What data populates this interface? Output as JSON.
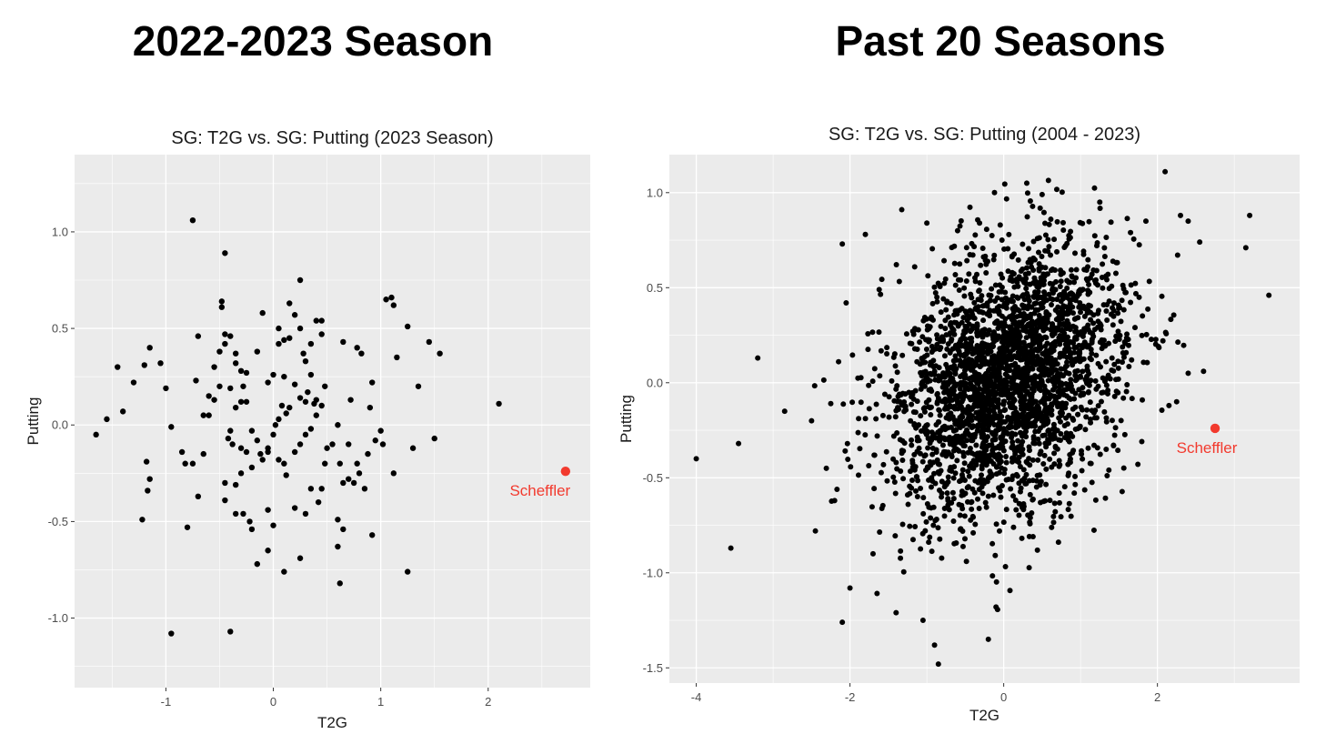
{
  "headings": {
    "left": "2022-2023 Season",
    "right": "Past 20 Seasons"
  },
  "colors": {
    "panel_bg": "#ebebeb",
    "grid_major": "#ffffff",
    "point": "#000000",
    "highlight": "#f23a2e"
  },
  "chart_data": [
    {
      "type": "scatter",
      "title": "SG: T2G vs. SG: Putting (2023 Season)",
      "xlabel": "T2G",
      "ylabel": "Putting",
      "xlim": [
        -1.85,
        2.95
      ],
      "ylim": [
        -1.36,
        1.4
      ],
      "xticks": [
        -1,
        0,
        1,
        2
      ],
      "xtick_labels": [
        "-1",
        "0",
        "1",
        "2"
      ],
      "yticks": [
        -1.0,
        -0.5,
        0.0,
        0.5,
        1.0
      ],
      "ytick_labels": [
        "-1.0",
        "-0.5",
        "0.0",
        "0.5",
        "1.0"
      ],
      "grid": true,
      "points": [
        [
          -1.65,
          -0.05
        ],
        [
          -1.55,
          0.03
        ],
        [
          -1.45,
          0.3
        ],
        [
          -1.4,
          0.07
        ],
        [
          -1.3,
          0.22
        ],
        [
          -1.2,
          0.31
        ],
        [
          -1.15,
          0.4
        ],
        [
          -1.05,
          0.32
        ],
        [
          -1.0,
          0.19
        ],
        [
          -0.95,
          -0.01
        ],
        [
          -1.18,
          -0.19
        ],
        [
          -1.15,
          -0.28
        ],
        [
          -1.17,
          -0.34
        ],
        [
          -1.22,
          -0.49
        ],
        [
          -0.85,
          -0.14
        ],
        [
          -0.82,
          -0.2
        ],
        [
          -0.75,
          -0.2
        ],
        [
          -0.8,
          -0.53
        ],
        [
          -0.7,
          -0.37
        ],
        [
          -0.65,
          -0.15
        ],
        [
          -0.72,
          0.23
        ],
        [
          -0.7,
          0.46
        ],
        [
          -0.65,
          0.05
        ],
        [
          -0.6,
          0.15
        ],
        [
          -0.55,
          0.13
        ],
        [
          -0.5,
          0.38
        ],
        [
          -0.48,
          0.61
        ],
        [
          -0.48,
          0.64
        ],
        [
          -0.45,
          0.47
        ],
        [
          -0.4,
          0.46
        ],
        [
          -0.45,
          0.42
        ],
        [
          -0.35,
          0.37
        ],
        [
          -0.35,
          0.32
        ],
        [
          -0.3,
          0.28
        ],
        [
          -0.25,
          0.27
        ],
        [
          -0.28,
          0.2
        ],
        [
          -0.3,
          0.12
        ],
        [
          -0.25,
          0.12
        ],
        [
          -0.35,
          0.09
        ],
        [
          -0.4,
          -0.03
        ],
        [
          -0.42,
          -0.07
        ],
        [
          -0.38,
          -0.1
        ],
        [
          -0.3,
          -0.12
        ],
        [
          -0.25,
          -0.14
        ],
        [
          -0.2,
          -0.03
        ],
        [
          -0.15,
          -0.08
        ],
        [
          -0.12,
          -0.15
        ],
        [
          -0.2,
          -0.22
        ],
        [
          -0.3,
          -0.25
        ],
        [
          -0.35,
          -0.31
        ],
        [
          -0.45,
          -0.3
        ],
        [
          -0.45,
          -0.39
        ],
        [
          -0.35,
          -0.46
        ],
        [
          -0.28,
          -0.46
        ],
        [
          -0.22,
          -0.5
        ],
        [
          -0.2,
          -0.54
        ],
        [
          -0.15,
          -0.72
        ],
        [
          -0.05,
          -0.65
        ],
        [
          -0.05,
          -0.44
        ],
        [
          0.0,
          -0.52
        ],
        [
          -0.5,
          0.2
        ],
        [
          -0.55,
          0.3
        ],
        [
          -0.4,
          0.19
        ],
        [
          -0.15,
          0.38
        ],
        [
          -0.1,
          0.58
        ],
        [
          -0.05,
          0.22
        ],
        [
          0.0,
          0.26
        ],
        [
          0.05,
          0.5
        ],
        [
          0.05,
          0.42
        ],
        [
          0.1,
          0.44
        ],
        [
          0.15,
          0.45
        ],
        [
          0.15,
          0.63
        ],
        [
          0.2,
          0.57
        ],
        [
          0.25,
          0.75
        ],
        [
          0.25,
          0.5
        ],
        [
          0.28,
          0.37
        ],
        [
          0.3,
          0.33
        ],
        [
          0.35,
          0.42
        ],
        [
          0.35,
          0.26
        ],
        [
          0.4,
          0.54
        ],
        [
          0.45,
          0.54
        ],
        [
          0.45,
          0.47
        ],
        [
          0.48,
          0.2
        ],
        [
          0.4,
          0.13
        ],
        [
          0.38,
          0.11
        ],
        [
          0.32,
          0.17
        ],
        [
          0.3,
          0.12
        ],
        [
          0.25,
          0.14
        ],
        [
          0.2,
          0.21
        ],
        [
          0.15,
          0.09
        ],
        [
          0.12,
          0.06
        ],
        [
          0.08,
          0.1
        ],
        [
          0.05,
          0.03
        ],
        [
          0.02,
          0.0
        ],
        [
          0.0,
          -0.05
        ],
        [
          -0.05,
          -0.12
        ],
        [
          -0.1,
          -0.18
        ],
        [
          0.05,
          -0.18
        ],
        [
          0.1,
          -0.2
        ],
        [
          0.12,
          -0.26
        ],
        [
          0.2,
          -0.14
        ],
        [
          0.25,
          -0.1
        ],
        [
          0.3,
          -0.05
        ],
        [
          0.35,
          -0.02
        ],
        [
          0.4,
          0.05
        ],
        [
          0.45,
          0.1
        ],
        [
          0.5,
          -0.12
        ],
        [
          0.48,
          -0.2
        ],
        [
          0.45,
          -0.33
        ],
        [
          0.42,
          -0.4
        ],
        [
          0.35,
          -0.33
        ],
        [
          0.3,
          -0.46
        ],
        [
          0.25,
          -0.69
        ],
        [
          0.2,
          -0.43
        ],
        [
          0.1,
          -0.76
        ],
        [
          -0.05,
          -0.14
        ],
        [
          0.6,
          0.0
        ],
        [
          0.62,
          -0.2
        ],
        [
          0.65,
          -0.3
        ],
        [
          0.6,
          -0.49
        ],
        [
          0.65,
          -0.54
        ],
        [
          0.6,
          -0.63
        ],
        [
          0.62,
          -0.82
        ],
        [
          0.55,
          -0.1
        ],
        [
          0.7,
          -0.28
        ],
        [
          0.75,
          -0.3
        ],
        [
          0.8,
          -0.25
        ],
        [
          0.85,
          -0.33
        ],
        [
          0.78,
          -0.2
        ],
        [
          0.72,
          0.13
        ],
        [
          0.65,
          0.43
        ],
        [
          0.78,
          0.4
        ],
        [
          0.82,
          0.37
        ],
        [
          0.92,
          0.22
        ],
        [
          0.88,
          -0.15
        ],
        [
          0.95,
          -0.08
        ],
        [
          1.02,
          -0.1
        ],
        [
          0.92,
          -0.57
        ],
        [
          1.0,
          -0.03
        ],
        [
          1.05,
          0.65
        ],
        [
          1.1,
          0.66
        ],
        [
          1.12,
          0.62
        ],
        [
          1.15,
          0.35
        ],
        [
          1.12,
          -0.25
        ],
        [
          1.25,
          0.51
        ],
        [
          1.3,
          -0.12
        ],
        [
          1.35,
          0.2
        ],
        [
          1.45,
          0.43
        ],
        [
          1.5,
          -0.07
        ],
        [
          1.55,
          0.37
        ],
        [
          1.25,
          -0.76
        ],
        [
          -0.95,
          -1.08
        ],
        [
          -0.4,
          -1.07
        ],
        [
          -0.75,
          1.06
        ],
        [
          -0.45,
          0.89
        ],
        [
          0.1,
          0.25
        ],
        [
          2.1,
          0.11
        ],
        [
          0.9,
          0.09
        ],
        [
          0.7,
          -0.1
        ],
        [
          -0.6,
          0.05
        ]
      ],
      "highlight": {
        "label": "Scheffler",
        "x": 2.72,
        "y": -0.24
      }
    },
    {
      "type": "scatter",
      "title": "SG: T2G vs. SG: Putting (2004 - 2023)",
      "xlabel": "T2G",
      "ylabel": "Putting",
      "xlim": [
        -4.35,
        3.85
      ],
      "ylim": [
        -1.58,
        1.2
      ],
      "xticks": [
        -4,
        -2,
        0,
        2
      ],
      "xtick_labels": [
        "-4",
        "-2",
        "0",
        "2"
      ],
      "yticks": [
        -1.5,
        -1.0,
        -0.5,
        0.0,
        0.5,
        1.0
      ],
      "ytick_labels": [
        "-1.5",
        "-1.0",
        "-0.5",
        "0.0",
        "0.5",
        "1.0"
      ],
      "grid": true,
      "n_points": 2800,
      "distribution": {
        "x_mean": 0.05,
        "x_sd": 0.75,
        "y_mean": 0.0,
        "y_sd": 0.35,
        "correlation": 0.3
      },
      "outliers": [
        [
          -4.0,
          -0.4
        ],
        [
          -3.55,
          -0.87
        ],
        [
          -3.45,
          -0.32
        ],
        [
          -3.2,
          0.13
        ],
        [
          -2.85,
          -0.15
        ],
        [
          -2.45,
          -0.78
        ],
        [
          -2.2,
          -0.62
        ],
        [
          -2.1,
          -1.26
        ],
        [
          -2.0,
          -1.08
        ],
        [
          -2.1,
          0.73
        ],
        [
          -1.8,
          0.78
        ],
        [
          -1.62,
          0.49
        ],
        [
          2.1,
          1.11
        ],
        [
          2.3,
          0.88
        ],
        [
          2.4,
          0.85
        ],
        [
          2.55,
          0.74
        ],
        [
          3.15,
          0.71
        ],
        [
          3.2,
          0.88
        ],
        [
          3.45,
          0.46
        ],
        [
          2.6,
          0.06
        ],
        [
          2.4,
          0.05
        ],
        [
          -0.85,
          -1.48
        ],
        [
          -0.9,
          -1.38
        ],
        [
          -0.2,
          -1.35
        ],
        [
          -2.25,
          -0.11
        ],
        [
          -2.05,
          0.42
        ],
        [
          -1.05,
          -1.25
        ],
        [
          -1.4,
          -1.21
        ],
        [
          2.15,
          -0.12
        ],
        [
          -1.0,
          0.84
        ],
        [
          -0.1,
          -1.18
        ],
        [
          0.3,
          1.05
        ],
        [
          1.25,
          0.95
        ],
        [
          1.85,
          0.85
        ],
        [
          2.25,
          -0.1
        ],
        [
          -2.5,
          -0.2
        ],
        [
          1.65,
          0.79
        ],
        [
          -0.6,
          0.8
        ],
        [
          0.5,
          0.99
        ],
        [
          -1.7,
          -0.9
        ]
      ],
      "highlight": {
        "label": "Scheffler",
        "x": 2.75,
        "y": -0.24
      }
    }
  ]
}
